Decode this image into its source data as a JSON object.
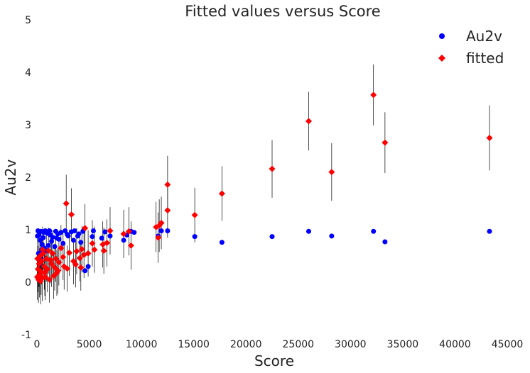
{
  "chart_data": {
    "type": "scatter",
    "title": "Fitted values versus Score",
    "xlabel": "Score",
    "ylabel": "Au2v",
    "xlim": [
      0,
      45000
    ],
    "ylim": [
      -1,
      5
    ],
    "xticks": [
      "0",
      "5000",
      "10000",
      "15000",
      "20000",
      "25000",
      "30000",
      "35000",
      "40000",
      "45000"
    ],
    "yticks": [
      "-1",
      "0",
      "1",
      "2",
      "3",
      "4",
      "5"
    ],
    "grid": false,
    "legend_position": "top-right",
    "colors": {
      "observed": "#0000ff",
      "fitted": "#ff0000",
      "errorbar": "#000000"
    },
    "series": [
      {
        "name": "Au2v",
        "marker": "circle",
        "points": [
          [
            43300,
            0.97
          ],
          [
            33300,
            0.77
          ],
          [
            32200,
            0.97
          ],
          [
            28200,
            0.88
          ],
          [
            26000,
            0.97
          ],
          [
            22500,
            0.87
          ],
          [
            17700,
            0.76
          ],
          [
            15100,
            0.87
          ],
          [
            12500,
            0.98
          ],
          [
            11900,
            0.98
          ],
          [
            11600,
            0.88
          ],
          [
            9300,
            0.95
          ],
          [
            9000,
            0.97
          ],
          [
            8600,
            0.9
          ],
          [
            8300,
            0.8
          ],
          [
            7000,
            0.88
          ],
          [
            6500,
            0.96
          ],
          [
            6200,
            0.84
          ],
          [
            5400,
            0.98
          ],
          [
            5300,
            0.87
          ],
          [
            4900,
            0.3
          ],
          [
            4600,
            0.22
          ],
          [
            4400,
            0.97
          ],
          [
            4200,
            0.76
          ],
          [
            3900,
            0.88
          ],
          [
            3600,
            0.98
          ],
          [
            3300,
            0.96
          ],
          [
            3000,
            0.88
          ],
          [
            2700,
            0.98
          ],
          [
            2300,
            0.95
          ],
          [
            2000,
            0.92
          ],
          [
            1800,
            0.97
          ],
          [
            1500,
            0.86
          ],
          [
            1200,
            0.98
          ],
          [
            1000,
            0.93
          ],
          [
            800,
            0.98
          ],
          [
            600,
            0.85
          ],
          [
            400,
            0.97
          ],
          [
            200,
            0.9
          ],
          [
            100,
            0.98
          ],
          [
            300,
            0.8
          ],
          [
            500,
            0.72
          ],
          [
            700,
            0.65
          ],
          [
            900,
            0.6
          ],
          [
            1100,
            0.7
          ],
          [
            150,
            0.55
          ],
          [
            350,
            0.45
          ],
          [
            250,
            0.35
          ],
          [
            450,
            0.62
          ],
          [
            1400,
            0.78
          ],
          [
            1700,
            0.68
          ],
          [
            2100,
            0.82
          ],
          [
            2500,
            0.74
          ],
          [
            50,
            0.88
          ],
          [
            650,
            0.95
          ],
          [
            1300,
            0.9
          ],
          [
            1900,
            0.84
          ],
          [
            2900,
            0.91
          ],
          [
            3500,
            0.8
          ],
          [
            4000,
            0.92
          ]
        ]
      },
      {
        "name": "fitted",
        "marker": "diamond",
        "points": [
          [
            43300,
            2.75,
            0.62
          ],
          [
            33300,
            2.66,
            0.58
          ],
          [
            32200,
            3.57,
            0.58
          ],
          [
            28200,
            2.1,
            0.55
          ],
          [
            26000,
            3.07,
            0.56
          ],
          [
            22500,
            2.16,
            0.55
          ],
          [
            17700,
            1.69,
            0.52
          ],
          [
            15100,
            1.28,
            0.52
          ],
          [
            12500,
            1.86,
            0.55
          ],
          [
            12500,
            1.37,
            0.52
          ],
          [
            11900,
            1.13,
            0.5
          ],
          [
            11700,
            1.08,
            0.5
          ],
          [
            11600,
            0.85,
            0.48
          ],
          [
            11400,
            1.05,
            0.48
          ],
          [
            9000,
            0.7,
            0.46
          ],
          [
            8800,
            0.97,
            0.46
          ],
          [
            8300,
            0.92,
            0.46
          ],
          [
            7000,
            0.98,
            0.45
          ],
          [
            6700,
            0.75,
            0.45
          ],
          [
            6400,
            0.6,
            0.44
          ],
          [
            6300,
            0.72,
            0.44
          ],
          [
            5500,
            0.62,
            0.44
          ],
          [
            5300,
            0.74,
            0.44
          ],
          [
            4900,
            0.55,
            0.44
          ],
          [
            4600,
            1.03,
            0.46
          ],
          [
            4500,
            0.52,
            0.44
          ],
          [
            4300,
            0.63,
            0.44
          ],
          [
            4100,
            0.46,
            0.44
          ],
          [
            3800,
            0.59,
            0.44
          ],
          [
            3500,
            0.4,
            0.44
          ],
          [
            3300,
            1.29,
            0.5
          ],
          [
            3100,
            0.56,
            0.44
          ],
          [
            2800,
            1.5,
            0.55
          ],
          [
            2600,
            0.3,
            0.44
          ],
          [
            2300,
            0.65,
            0.44
          ],
          [
            2000,
            0.22,
            0.44
          ],
          [
            1800,
            0.45,
            0.44
          ],
          [
            1600,
            0.12,
            0.44
          ],
          [
            1400,
            0.35,
            0.44
          ],
          [
            1200,
            0.05,
            0.44
          ],
          [
            1000,
            0.25,
            0.44
          ],
          [
            900,
            0.45,
            0.44
          ],
          [
            800,
            0.1,
            0.44
          ],
          [
            700,
            0.3,
            0.44
          ],
          [
            600,
            0.55,
            0.44
          ],
          [
            500,
            0.08,
            0.44
          ],
          [
            450,
            0.4,
            0.44
          ],
          [
            400,
            0.2,
            0.44
          ],
          [
            350,
            0.02,
            0.44
          ],
          [
            300,
            0.5,
            0.44
          ],
          [
            250,
            0.15,
            0.44
          ],
          [
            200,
            0.35,
            0.44
          ],
          [
            150,
            0.05,
            0.44
          ],
          [
            100,
            0.25,
            0.44
          ],
          [
            60,
            0.45,
            0.44
          ],
          [
            30,
            0.1,
            0.44
          ],
          [
            1500,
            0.55,
            0.44
          ],
          [
            2100,
            0.38,
            0.44
          ],
          [
            2500,
            0.48,
            0.44
          ],
          [
            2900,
            0.26,
            0.44
          ],
          [
            3700,
            0.34,
            0.44
          ],
          [
            4200,
            0.28,
            0.44
          ],
          [
            550,
            0.62,
            0.44
          ],
          [
            1100,
            0.6,
            0.44
          ],
          [
            1900,
            0.18,
            0.44
          ],
          [
            1300,
            0.42,
            0.44
          ],
          [
            1700,
            0.28,
            0.44
          ],
          [
            750,
            0.18,
            0.44
          ]
        ]
      }
    ]
  }
}
